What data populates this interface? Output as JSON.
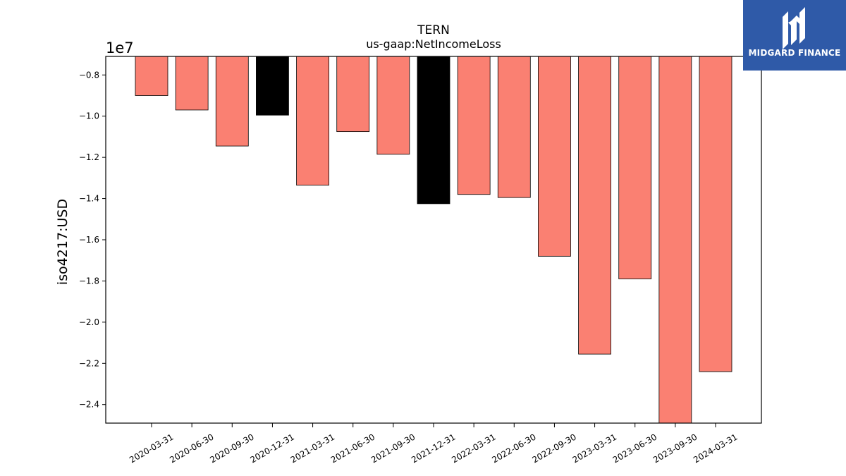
{
  "brand": {
    "name": "MIDGARD FINANCE"
  },
  "colors": {
    "default_bar": "#fa8072",
    "highlight_bar": "#000000",
    "logo_bg": "#2f5aa8"
  },
  "chart_data": {
    "type": "bar",
    "title": "TERN",
    "subtitle": "us-gaap:NetIncomeLoss",
    "ylabel": "iso4217:USD",
    "yscale_label": "1e7",
    "ylim": [
      -2.49,
      -0.71
    ],
    "yticks": [
      -0.8,
      -1.0,
      -1.2,
      -1.4,
      -1.6,
      -1.8,
      -2.0,
      -2.2,
      -2.4
    ],
    "ytick_labels": [
      "−0.8",
      "−1.0",
      "−1.2",
      "−1.4",
      "−1.6",
      "−1.8",
      "−2.0",
      "−2.2",
      "−2.4"
    ],
    "categories": [
      "2020-03-31",
      "2020-06-30",
      "2020-09-30",
      "2020-12-31",
      "2021-03-31",
      "2021-06-30",
      "2021-09-30",
      "2021-12-31",
      "2022-03-31",
      "2022-06-30",
      "2022-09-30",
      "2023-03-31",
      "2023-06-30",
      "2023-09-30",
      "2024-03-31"
    ],
    "values": [
      -0.9,
      -0.97,
      -1.145,
      -0.995,
      -1.335,
      -1.075,
      -1.185,
      -1.425,
      -1.38,
      -1.395,
      -1.68,
      -2.155,
      -1.79,
      -2.49,
      -2.24
    ],
    "highlight": [
      false,
      false,
      false,
      true,
      false,
      false,
      false,
      true,
      false,
      false,
      false,
      false,
      false,
      false,
      false
    ],
    "grid": false
  }
}
